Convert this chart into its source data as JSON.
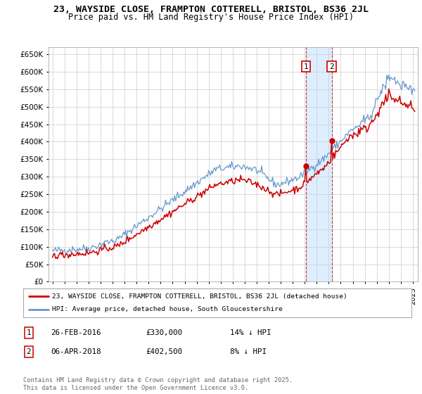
{
  "title": "23, WAYSIDE CLOSE, FRAMPTON COTTERELL, BRISTOL, BS36 2JL",
  "subtitle": "Price paid vs. HM Land Registry's House Price Index (HPI)",
  "ylim": [
    0,
    670000
  ],
  "yticks": [
    0,
    50000,
    100000,
    150000,
    200000,
    250000,
    300000,
    350000,
    400000,
    450000,
    500000,
    550000,
    600000,
    650000
  ],
  "line1_color": "#cc0000",
  "line2_color": "#6699cc",
  "shaded_color": "#ddeeff",
  "purchase1_price": 330000,
  "purchase2_price": 402500,
  "legend_line1": "23, WAYSIDE CLOSE, FRAMPTON COTTERELL, BRISTOL, BS36 2JL (detached house)",
  "legend_line2": "HPI: Average price, detached house, South Gloucestershire",
  "table_row1": [
    "1",
    "26-FEB-2016",
    "£330,000",
    "14% ↓ HPI"
  ],
  "table_row2": [
    "2",
    "06-APR-2018",
    "£402,500",
    "8% ↓ HPI"
  ],
  "footer": "Contains HM Land Registry data © Crown copyright and database right 2025.\nThis data is licensed under the Open Government Licence v3.0.",
  "title_fontsize": 9.5,
  "subtitle_fontsize": 8.5,
  "background_color": "#ffffff"
}
